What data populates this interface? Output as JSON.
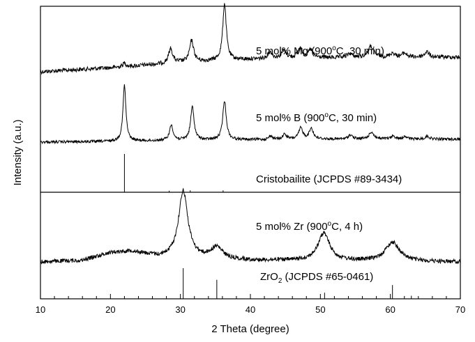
{
  "chart_data": {
    "type": "line",
    "title": "",
    "xlabel": "2 Theta (degree)",
    "ylabel": "Intensity (a.u.)",
    "xlim": [
      10,
      70
    ],
    "x_ticks": [
      "10",
      "20",
      "30",
      "40",
      "50",
      "60",
      "70"
    ],
    "y_ticks": "none",
    "grid": false,
    "legend": "none",
    "panels": [
      {
        "name": "top",
        "series": [
          {
            "name": "5 mol% Mg (900°C, 30 min)",
            "kind": "xrd_pattern",
            "baseline_profile": [
              [
                10,
                0.0
              ],
              [
                20,
                0.06
              ],
              [
                30,
                0.14
              ],
              [
                40,
                0.19
              ],
              [
                50,
                0.21
              ],
              [
                60,
                0.22
              ],
              [
                70,
                0.22
              ]
            ],
            "peaks": [
              {
                "x": 22.0,
                "height": 0.06,
                "width": 0.25
              },
              {
                "x": 28.6,
                "height": 0.22,
                "width": 0.35
              },
              {
                "x": 31.6,
                "height": 0.32,
                "width": 0.35
              },
              {
                "x": 36.3,
                "height": 0.86,
                "width": 0.3
              },
              {
                "x": 42.8,
                "height": 0.1,
                "width": 0.4
              },
              {
                "x": 44.8,
                "height": 0.12,
                "width": 0.4
              },
              {
                "x": 47.1,
                "height": 0.15,
                "width": 0.4
              },
              {
                "x": 48.6,
                "height": 0.12,
                "width": 0.4
              },
              {
                "x": 54.2,
                "height": 0.06,
                "width": 0.4
              },
              {
                "x": 57.2,
                "height": 0.16,
                "width": 0.5
              },
              {
                "x": 60.3,
                "height": 0.06,
                "width": 0.4
              },
              {
                "x": 62.0,
                "height": 0.06,
                "width": 0.4
              },
              {
                "x": 65.2,
                "height": 0.08,
                "width": 0.4
              }
            ]
          },
          {
            "name": "5 mol% B (900°C, 30 min)",
            "kind": "xrd_pattern",
            "baseline_profile": [
              [
                10,
                0.0
              ],
              [
                20,
                0.01
              ],
              [
                30,
                0.03
              ],
              [
                40,
                0.04
              ],
              [
                50,
                0.05
              ],
              [
                60,
                0.05
              ],
              [
                70,
                0.05
              ]
            ],
            "peaks": [
              {
                "x": 22.0,
                "height": 0.95,
                "width": 0.25
              },
              {
                "x": 28.7,
                "height": 0.26,
                "width": 0.3
              },
              {
                "x": 31.7,
                "height": 0.56,
                "width": 0.3
              },
              {
                "x": 36.3,
                "height": 0.66,
                "width": 0.3
              },
              {
                "x": 42.9,
                "height": 0.06,
                "width": 0.3
              },
              {
                "x": 44.9,
                "height": 0.09,
                "width": 0.3
              },
              {
                "x": 47.2,
                "height": 0.19,
                "width": 0.35
              },
              {
                "x": 48.7,
                "height": 0.18,
                "width": 0.35
              },
              {
                "x": 54.3,
                "height": 0.07,
                "width": 0.35
              },
              {
                "x": 57.3,
                "height": 0.12,
                "width": 0.4
              },
              {
                "x": 60.4,
                "height": 0.05,
                "width": 0.35
              },
              {
                "x": 62.1,
                "height": 0.05,
                "width": 0.35
              },
              {
                "x": 65.3,
                "height": 0.05,
                "width": 0.35
              }
            ]
          },
          {
            "name": "Cristobailite (JCPDS #89-3434)",
            "kind": "reference_sticks",
            "sticks": [
              {
                "x": 22.0,
                "intensity": 100
              },
              {
                "x": 28.4,
                "intensity": 4
              },
              {
                "x": 31.4,
                "intensity": 5
              },
              {
                "x": 36.1,
                "intensity": 5
              }
            ]
          }
        ]
      },
      {
        "name": "bottom",
        "series": [
          {
            "name": "5 mol% Zr (900°C, 4 h)",
            "kind": "xrd_pattern",
            "baseline_profile": [
              [
                10,
                0.0
              ],
              [
                16,
                0.02
              ],
              [
                20,
                0.12
              ],
              [
                23,
                0.14
              ],
              [
                27,
                0.06
              ],
              [
                40,
                0.02
              ],
              [
                70,
                0.0
              ]
            ],
            "peaks": [
              {
                "x": 30.4,
                "height": 0.88,
                "width": 0.8
              },
              {
                "x": 35.2,
                "height": 0.15,
                "width": 1.0
              },
              {
                "x": 50.5,
                "height": 0.36,
                "width": 1.0
              },
              {
                "x": 60.3,
                "height": 0.25,
                "width": 1.2
              }
            ]
          },
          {
            "name": "ZrO2 (JCPDS #65-0461)",
            "kind": "reference_sticks",
            "sticks": [
              {
                "x": 30.4,
                "intensity": 100
              },
              {
                "x": 35.2,
                "intensity": 62
              },
              {
                "x": 50.6,
                "intensity": 20
              },
              {
                "x": 60.3,
                "intensity": 45
              },
              {
                "x": 63.0,
                "intensity": 10
              }
            ]
          }
        ]
      }
    ],
    "annotations": {
      "mg": "5 mol% Mg (900°C, 30 min)",
      "b": "5 mol% B (900°C, 30 min)",
      "cristobalite": "Cristobailite (JCPDS #89-3434)",
      "zr": "5 mol% Zr (900°C, 4 h)",
      "zro2": "ZrO2 (JCPDS #65-0461)"
    }
  }
}
